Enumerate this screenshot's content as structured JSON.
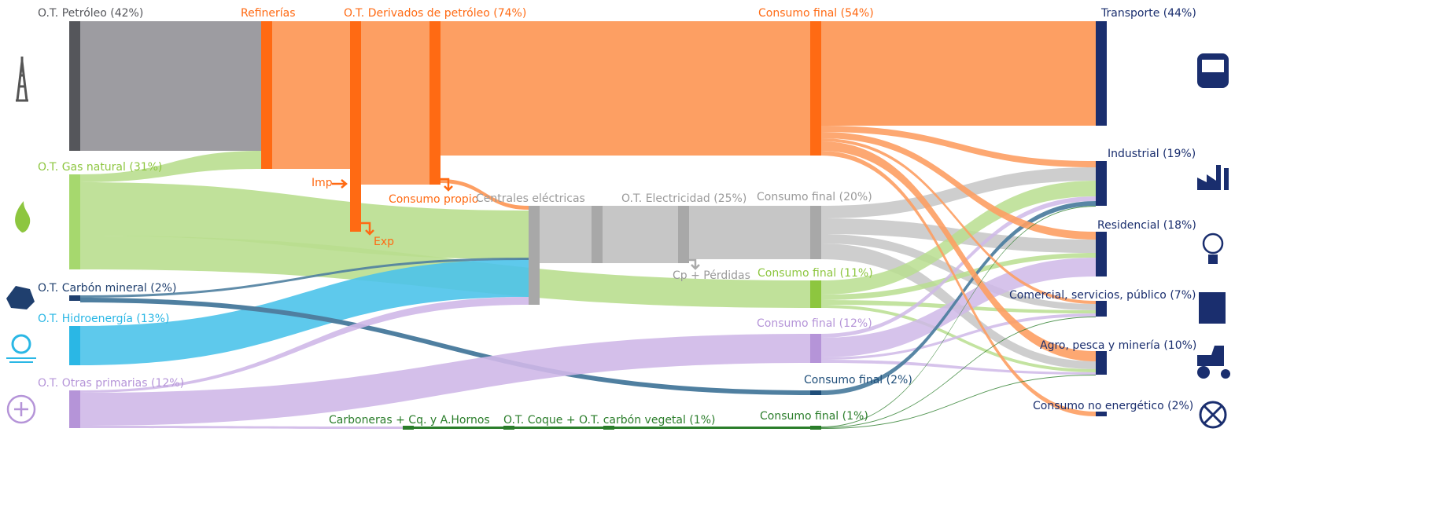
{
  "nodes": [
    "O.T. Petróleo (42%)",
    "Refinerías",
    "O.T. Derivados de petróleo (74%)",
    "Consumo final (54%)",
    "Transporte (44%)",
    "O.T. Gas natural (31%)",
    "Imp",
    "Consumo propio",
    "Centrales eléctricas",
    "O.T. Electricidad (25%)",
    "Consumo final (20%)",
    "Exp",
    "Cp + Pérdidas",
    "Consumo final (11%)",
    "O.T. Carbón mineral (2%)",
    "O.T. Hidroenergía (13%)",
    "Consumo final (12%)",
    "Consumo final (2%)",
    "O.T. Otras primarias (12%)",
    "Carboneras + Cq. y A.Hornos",
    "O.T. Coque + O.T. carbón vegetal (1%)",
    "Consumo final (1%)",
    "Industrial (19%)",
    "Residencial (18%)",
    "Comercial, servicios, público (7%)",
    "Agro, pesca y minería (10%)",
    "Consumo no energético (2%)"
  ]
}
